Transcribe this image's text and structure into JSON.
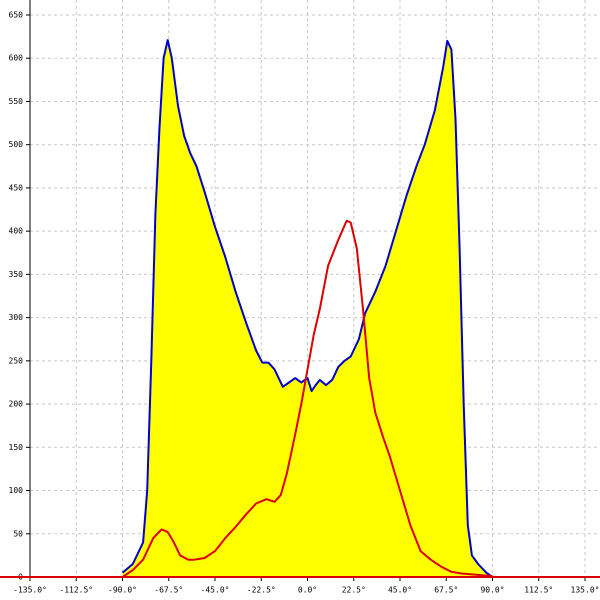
{
  "chart_data": {
    "type": "line",
    "xlim": [
      -135,
      135
    ],
    "xticks": [
      {
        "value": -135,
        "label": "-135.0°"
      },
      {
        "value": -112.5,
        "label": "-112.5°"
      },
      {
        "value": -90,
        "label": "-90.0°"
      },
      {
        "value": -67.5,
        "label": "-67.5°"
      },
      {
        "value": -45,
        "label": "-45.0°"
      },
      {
        "value": -22.5,
        "label": "-22.5°"
      },
      {
        "value": 0,
        "label": "0.0°"
      },
      {
        "value": 22.5,
        "label": "22.5°"
      },
      {
        "value": 45,
        "label": "45.0°"
      },
      {
        "value": 67.5,
        "label": "67.5°"
      },
      {
        "value": 90,
        "label": "90.0°"
      },
      {
        "value": 112.5,
        "label": "112.5°"
      },
      {
        "value": 135,
        "label": "135.0°"
      }
    ],
    "ylim": [
      0,
      650
    ],
    "yticks": [
      0,
      50,
      100,
      150,
      200,
      250,
      300,
      350,
      400,
      450,
      500,
      550,
      600,
      650
    ],
    "grid": true,
    "axis_color": "#dd0000",
    "series": [
      {
        "color": "#0000cc",
        "fill": "#ffff00",
        "x": [
          -90,
          -85,
          -80,
          -78,
          -76,
          -74,
          -72,
          -70,
          -68,
          -66,
          -63,
          -60,
          -57,
          -54,
          -50,
          -45,
          -40,
          -35,
          -30,
          -25,
          -22,
          -19,
          -16,
          -12,
          -9,
          -6,
          -3,
          0,
          2,
          4,
          6,
          9,
          12,
          15,
          18,
          21,
          25,
          28,
          33,
          38,
          43,
          48,
          53,
          57,
          62,
          66,
          68,
          70,
          72,
          74,
          76,
          78,
          80,
          83,
          87,
          90
        ],
        "values": [
          5,
          15,
          40,
          100,
          250,
          420,
          520,
          600,
          621,
          600,
          545,
          510,
          490,
          475,
          445,
          405,
          370,
          330,
          295,
          262,
          248,
          248,
          240,
          220,
          225,
          230,
          225,
          230,
          215,
          222,
          228,
          222,
          228,
          243,
          250,
          255,
          275,
          305,
          330,
          360,
          400,
          440,
          475,
          500,
          540,
          590,
          620,
          610,
          530,
          380,
          200,
          60,
          25,
          15,
          5,
          0
        ]
      },
      {
        "color": "#dd0000",
        "x": [
          -90,
          -85,
          -80,
          -75,
          -71,
          -68,
          -65,
          -62,
          -58,
          -55,
          -50,
          -45,
          -40,
          -35,
          -30,
          -25,
          -20,
          -16,
          -13,
          -10,
          -6,
          -3,
          0,
          3,
          6,
          10,
          15,
          19,
          21,
          24,
          27,
          30,
          33,
          37,
          40,
          45,
          50,
          55,
          60,
          65,
          70,
          75,
          80,
          85,
          90
        ],
        "values": [
          0,
          8,
          20,
          45,
          55,
          52,
          40,
          25,
          20,
          20,
          22,
          30,
          45,
          58,
          72,
          85,
          90,
          87,
          95,
          120,
          165,
          200,
          240,
          280,
          310,
          360,
          390,
          412,
          410,
          380,
          310,
          230,
          190,
          160,
          140,
          100,
          60,
          30,
          20,
          12,
          6,
          4,
          3,
          2,
          1
        ]
      }
    ]
  }
}
